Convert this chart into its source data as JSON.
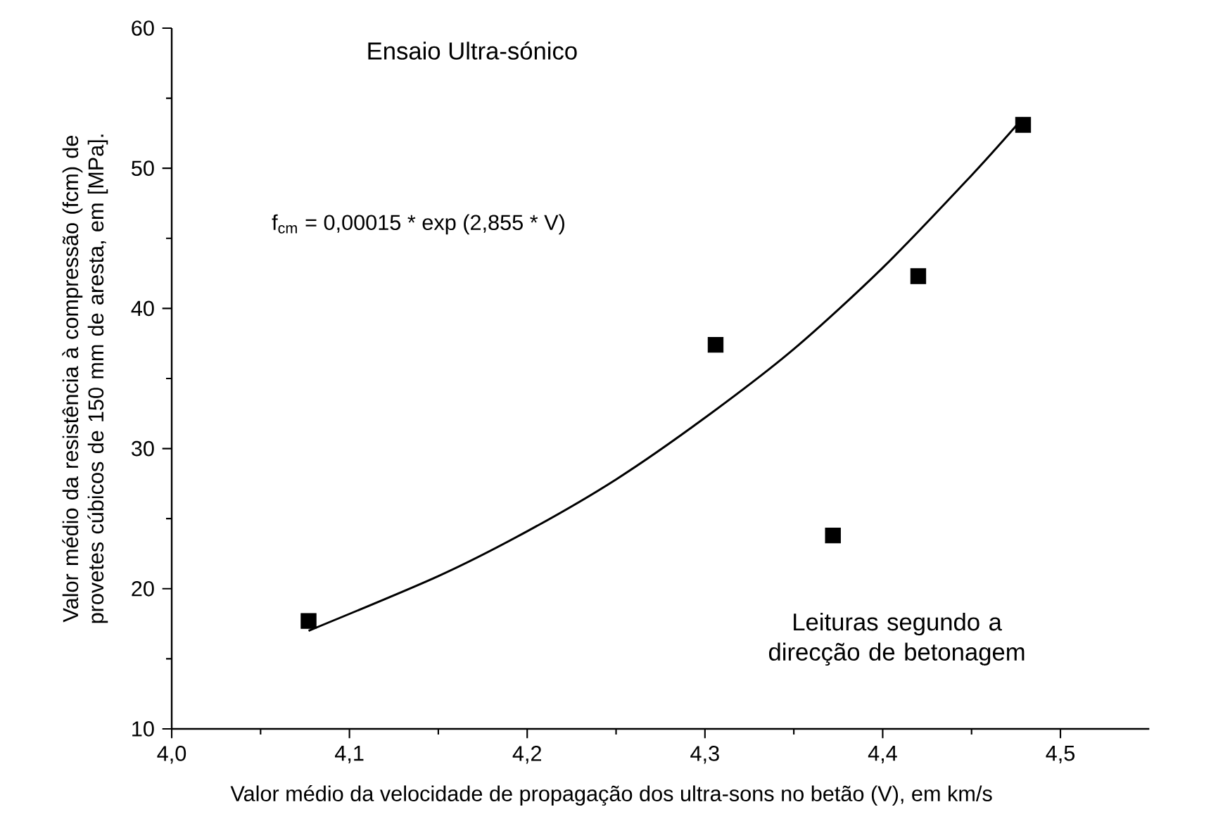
{
  "chart_data": {
    "type": "scatter",
    "title": "Ensaio Ultra-sónico",
    "xlabel": "Valor médio da velocidade de propagação dos ultra-sons no betão (V), em km/s",
    "ylabel": "Valor médio da resistência à compressão (fcm) de provetes cúbicos de 150 mm de aresta, em [MPa].",
    "annotations": [
      "f$_{cm}$ = 0,00015 * exp (2,855 * V)",
      "Leituras segundo a direcção de betonagem"
    ],
    "series": [
      {
        "color": "#000000",
        "marker": "square",
        "x": [
          4.077,
          4.306,
          4.372,
          4.42,
          4.479
        ],
        "values": [
          17.7,
          37.4,
          23.8,
          42.3,
          53.1
        ]
      },
      {
        "type": "line",
        "color": "#000000",
        "line_style": "solid",
        "x": [
          4.077,
          4.15,
          4.2,
          4.25,
          4.3,
          4.35,
          4.4,
          4.45,
          4.479
        ],
        "values": [
          17.0,
          20.9,
          24.1,
          27.8,
          32.2,
          37.1,
          42.9,
          49.5,
          53.6
        ]
      }
    ],
    "xlim": [
      4.0,
      4.55
    ],
    "xticks": [
      {
        "value": 4.0,
        "label": "4,0"
      },
      {
        "value": 4.1,
        "label": "4,1"
      },
      {
        "value": 4.2,
        "label": "4,2"
      },
      {
        "value": 4.3,
        "label": "4,3"
      },
      {
        "value": 4.4,
        "label": "4,4"
      },
      {
        "value": 4.5,
        "label": "4,5"
      }
    ],
    "ylim": [
      10,
      60
    ],
    "yticks": [
      10,
      20,
      30,
      40,
      50,
      60
    ],
    "grid": false
  }
}
